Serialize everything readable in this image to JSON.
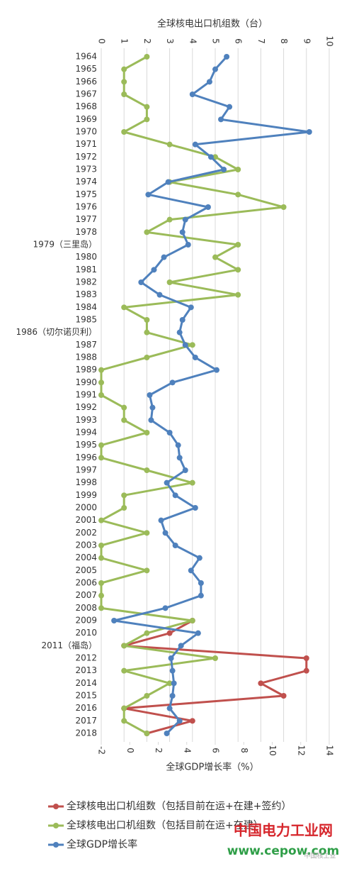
{
  "chart_data": {
    "type": "line",
    "top_axis_label": "全球核电出口机组数（台）",
    "bottom_axis_label": "全球GDP增长率（%）",
    "categories": [
      "1964",
      "1965",
      "1966",
      "1967",
      "1968",
      "1969",
      "1970",
      "1971",
      "1972",
      "1973",
      "1974",
      "1975",
      "1976",
      "1977",
      "1978",
      "1979（三里岛）",
      "1980",
      "1981",
      "1982",
      "1983",
      "1984",
      "1985",
      "1986（切尔诺贝利）",
      "1987",
      "1988",
      "1989",
      "1990",
      "1991",
      "1992",
      "1993",
      "1994",
      "1995",
      "1996",
      "1997",
      "1998",
      "1999",
      "2000",
      "2001",
      "2002",
      "2003",
      "2004",
      "2005",
      "2006",
      "2007",
      "2008",
      "2009",
      "2010",
      "2011（福岛）",
      "2012",
      "2013",
      "2014",
      "2015",
      "2016",
      "2017",
      "2018"
    ],
    "series": [
      {
        "name": "全球核电出口机组数（包括目前在运+在建+签约）",
        "color": "#c0504d",
        "axis": "x2",
        "values": [
          null,
          null,
          null,
          null,
          null,
          null,
          null,
          null,
          null,
          null,
          null,
          null,
          null,
          null,
          null,
          null,
          null,
          null,
          null,
          null,
          null,
          null,
          null,
          null,
          null,
          null,
          null,
          null,
          null,
          null,
          null,
          null,
          null,
          null,
          null,
          null,
          null,
          null,
          null,
          null,
          null,
          null,
          null,
          null,
          null,
          4,
          3,
          1,
          9,
          9,
          7,
          8,
          1,
          4,
          2
        ]
      },
      {
        "name": "全球核电出口机组数（包括目前在运+在建）",
        "color": "#9bbb59",
        "axis": "x2",
        "values": [
          2,
          1,
          1,
          1,
          2,
          2,
          1,
          3,
          5,
          6,
          3,
          6,
          8,
          3,
          2,
          6,
          5,
          6,
          3,
          6,
          1,
          2,
          2,
          4,
          2,
          0,
          0,
          0,
          1,
          1,
          2,
          0,
          0,
          2,
          4,
          1,
          1,
          0,
          2,
          0,
          0,
          2,
          0,
          0,
          0,
          4,
          2,
          1,
          5,
          1,
          3,
          2,
          1,
          1,
          2
        ]
      },
      {
        "name": "全球GDP增长率",
        "color": "#4f81bd",
        "axis": "x",
        "values": [
          6.8,
          6.0,
          5.6,
          4.4,
          7.0,
          6.4,
          12.6,
          4.6,
          5.7,
          6.6,
          2.7,
          1.3,
          5.5,
          3.9,
          3.7,
          4.1,
          2.4,
          1.7,
          0.8,
          2.1,
          4.3,
          3.7,
          3.5,
          3.9,
          4.6,
          6.1,
          3.0,
          1.4,
          1.6,
          1.5,
          2.8,
          3.4,
          3.5,
          3.9,
          2.6,
          3.2,
          4.6,
          2.2,
          2.5,
          3.2,
          4.9,
          4.3,
          5.0,
          5.0,
          2.5,
          -1.1,
          4.8,
          3.6,
          2.9,
          3.0,
          3.1,
          3.0,
          2.8,
          3.5,
          2.6
        ]
      }
    ],
    "x2lim": [
      0,
      10
    ],
    "x2ticks": [
      0,
      1,
      2,
      3,
      4,
      5,
      6,
      7,
      8,
      9,
      10
    ],
    "xlim": [
      -2,
      14
    ],
    "xticks": [
      -2,
      0,
      2,
      4,
      6,
      8,
      10,
      12,
      14
    ],
    "grid": true,
    "legend": "bottom",
    "watermark": {
      "title": "中国电力工业网",
      "url": "www.cepow.com",
      "small": "中国核工业"
    }
  }
}
